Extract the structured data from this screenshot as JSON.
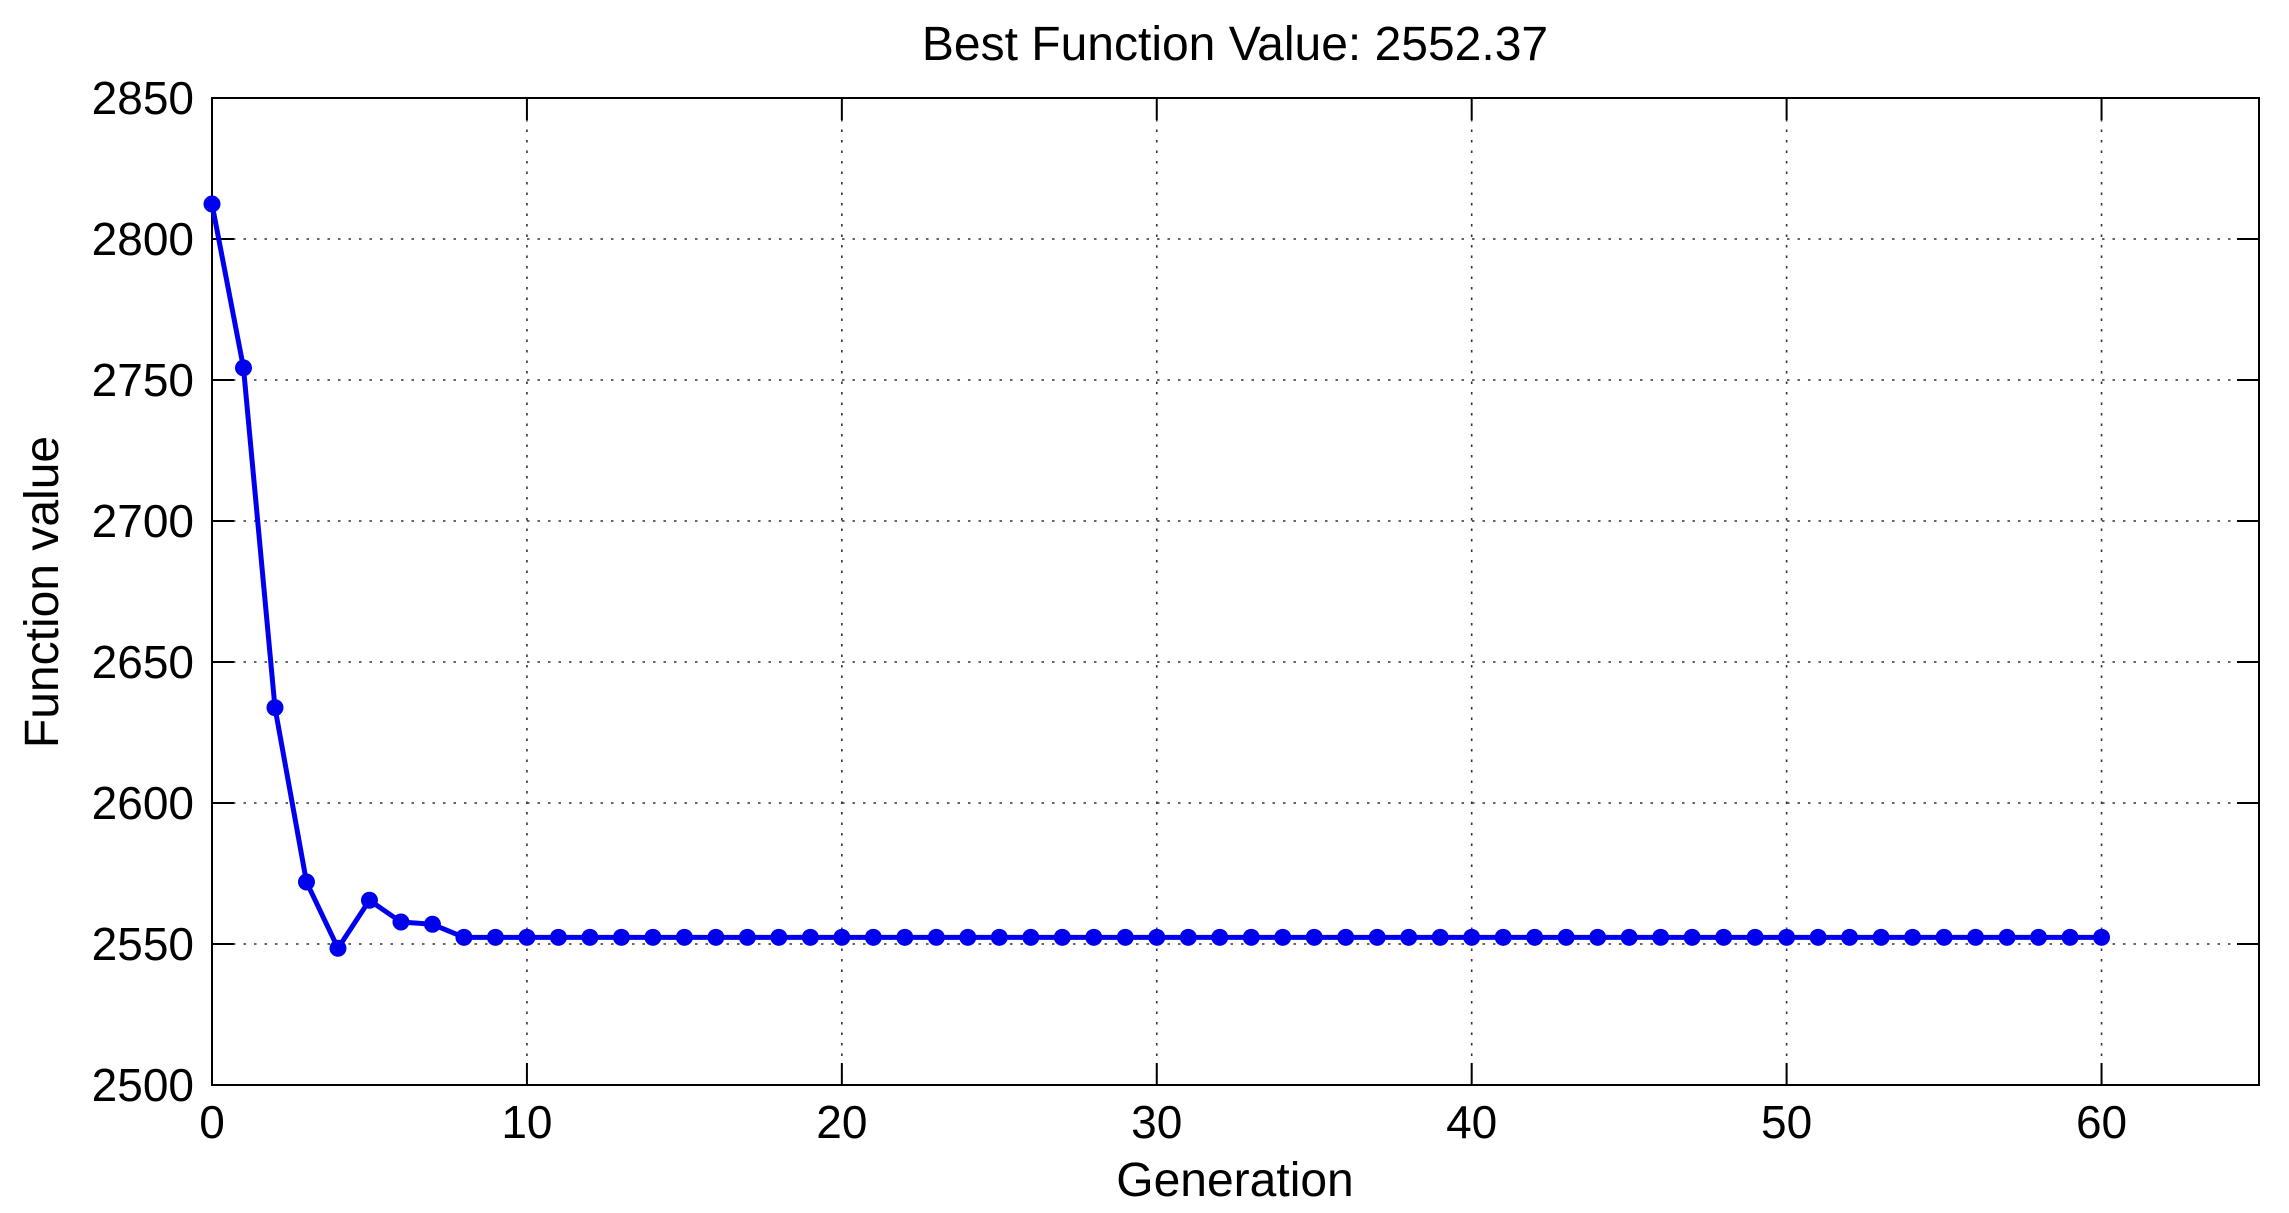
{
  "chart_data": {
    "type": "line",
    "title": "Best Function Value: 2552.37",
    "best_value": 2552.37,
    "xlabel": "Generation",
    "ylabel": "Function value",
    "xlim": [
      0,
      65
    ],
    "ylim": [
      2500,
      2850
    ],
    "xticks": [
      0,
      10,
      20,
      30,
      40,
      50,
      60
    ],
    "yticks": [
      2500,
      2550,
      2600,
      2650,
      2700,
      2750,
      2800,
      2850
    ],
    "grid": true,
    "grid_style": "dotted",
    "legend": "none",
    "line_color": "#0000EE",
    "marker": "filled-circle",
    "marker_color": "#0000EE",
    "axis_color": "#000000",
    "x": [
      0,
      1,
      2,
      3,
      4,
      5,
      6,
      7,
      8,
      9,
      10,
      11,
      12,
      13,
      14,
      15,
      16,
      17,
      18,
      19,
      20,
      21,
      22,
      23,
      24,
      25,
      26,
      27,
      28,
      29,
      30,
      31,
      32,
      33,
      34,
      35,
      36,
      37,
      38,
      39,
      40,
      41,
      42,
      43,
      44,
      45,
      46,
      47,
      48,
      49,
      50,
      51,
      52,
      53,
      54,
      55,
      56,
      57,
      58,
      59,
      60
    ],
    "y": [
      2812.4,
      2754.3,
      2633.8,
      2572.0,
      2548.5,
      2565.5,
      2557.8,
      2557.0,
      2552.37,
      2552.37,
      2552.37,
      2552.37,
      2552.37,
      2552.37,
      2552.37,
      2552.37,
      2552.37,
      2552.37,
      2552.37,
      2552.37,
      2552.37,
      2552.37,
      2552.37,
      2552.37,
      2552.37,
      2552.37,
      2552.37,
      2552.37,
      2552.37,
      2552.37,
      2552.37,
      2552.37,
      2552.37,
      2552.37,
      2552.37,
      2552.37,
      2552.37,
      2552.37,
      2552.37,
      2552.37,
      2552.37,
      2552.37,
      2552.37,
      2552.37,
      2552.37,
      2552.37,
      2552.37,
      2552.37,
      2552.37,
      2552.37,
      2552.37,
      2552.37,
      2552.37,
      2552.37,
      2552.37,
      2552.37,
      2552.37,
      2552.37,
      2552.37,
      2552.37,
      2552.37
    ]
  }
}
